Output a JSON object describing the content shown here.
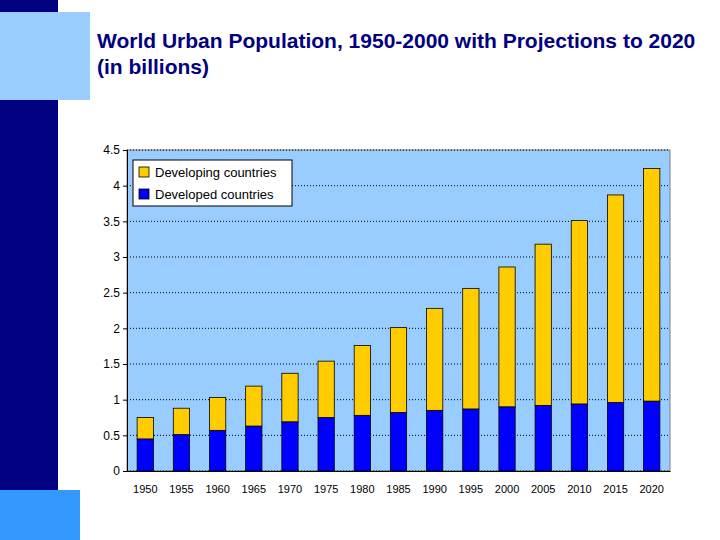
{
  "chart_data": {
    "type": "bar",
    "title": "World Urban Population, 1950-2000 with Projections to 2020 (in billions)",
    "categories": [
      "1950",
      "1955",
      "1960",
      "1965",
      "1970",
      "1975",
      "1980",
      "1985",
      "1990",
      "1995",
      "2000",
      "2005",
      "2010",
      "2015",
      "2020"
    ],
    "series": [
      {
        "name": "Developing countries",
        "color": "#ffcc00",
        "values": [
          0.3,
          0.37,
          0.46,
          0.56,
          0.68,
          0.79,
          0.98,
          1.19,
          1.43,
          1.69,
          1.96,
          2.26,
          2.57,
          2.91,
          3.26
        ]
      },
      {
        "name": "Developed countries",
        "color": "#0000ff",
        "values": [
          0.45,
          0.51,
          0.57,
          0.63,
          0.69,
          0.75,
          0.78,
          0.82,
          0.85,
          0.87,
          0.9,
          0.92,
          0.94,
          0.96,
          0.98
        ]
      }
    ],
    "stacked": true,
    "ylim": [
      0,
      4.5
    ],
    "yticks": [
      0,
      0.5,
      1,
      1.5,
      2,
      2.5,
      3,
      3.5,
      4,
      4.5
    ],
    "grid": true,
    "legend": "upper left"
  }
}
